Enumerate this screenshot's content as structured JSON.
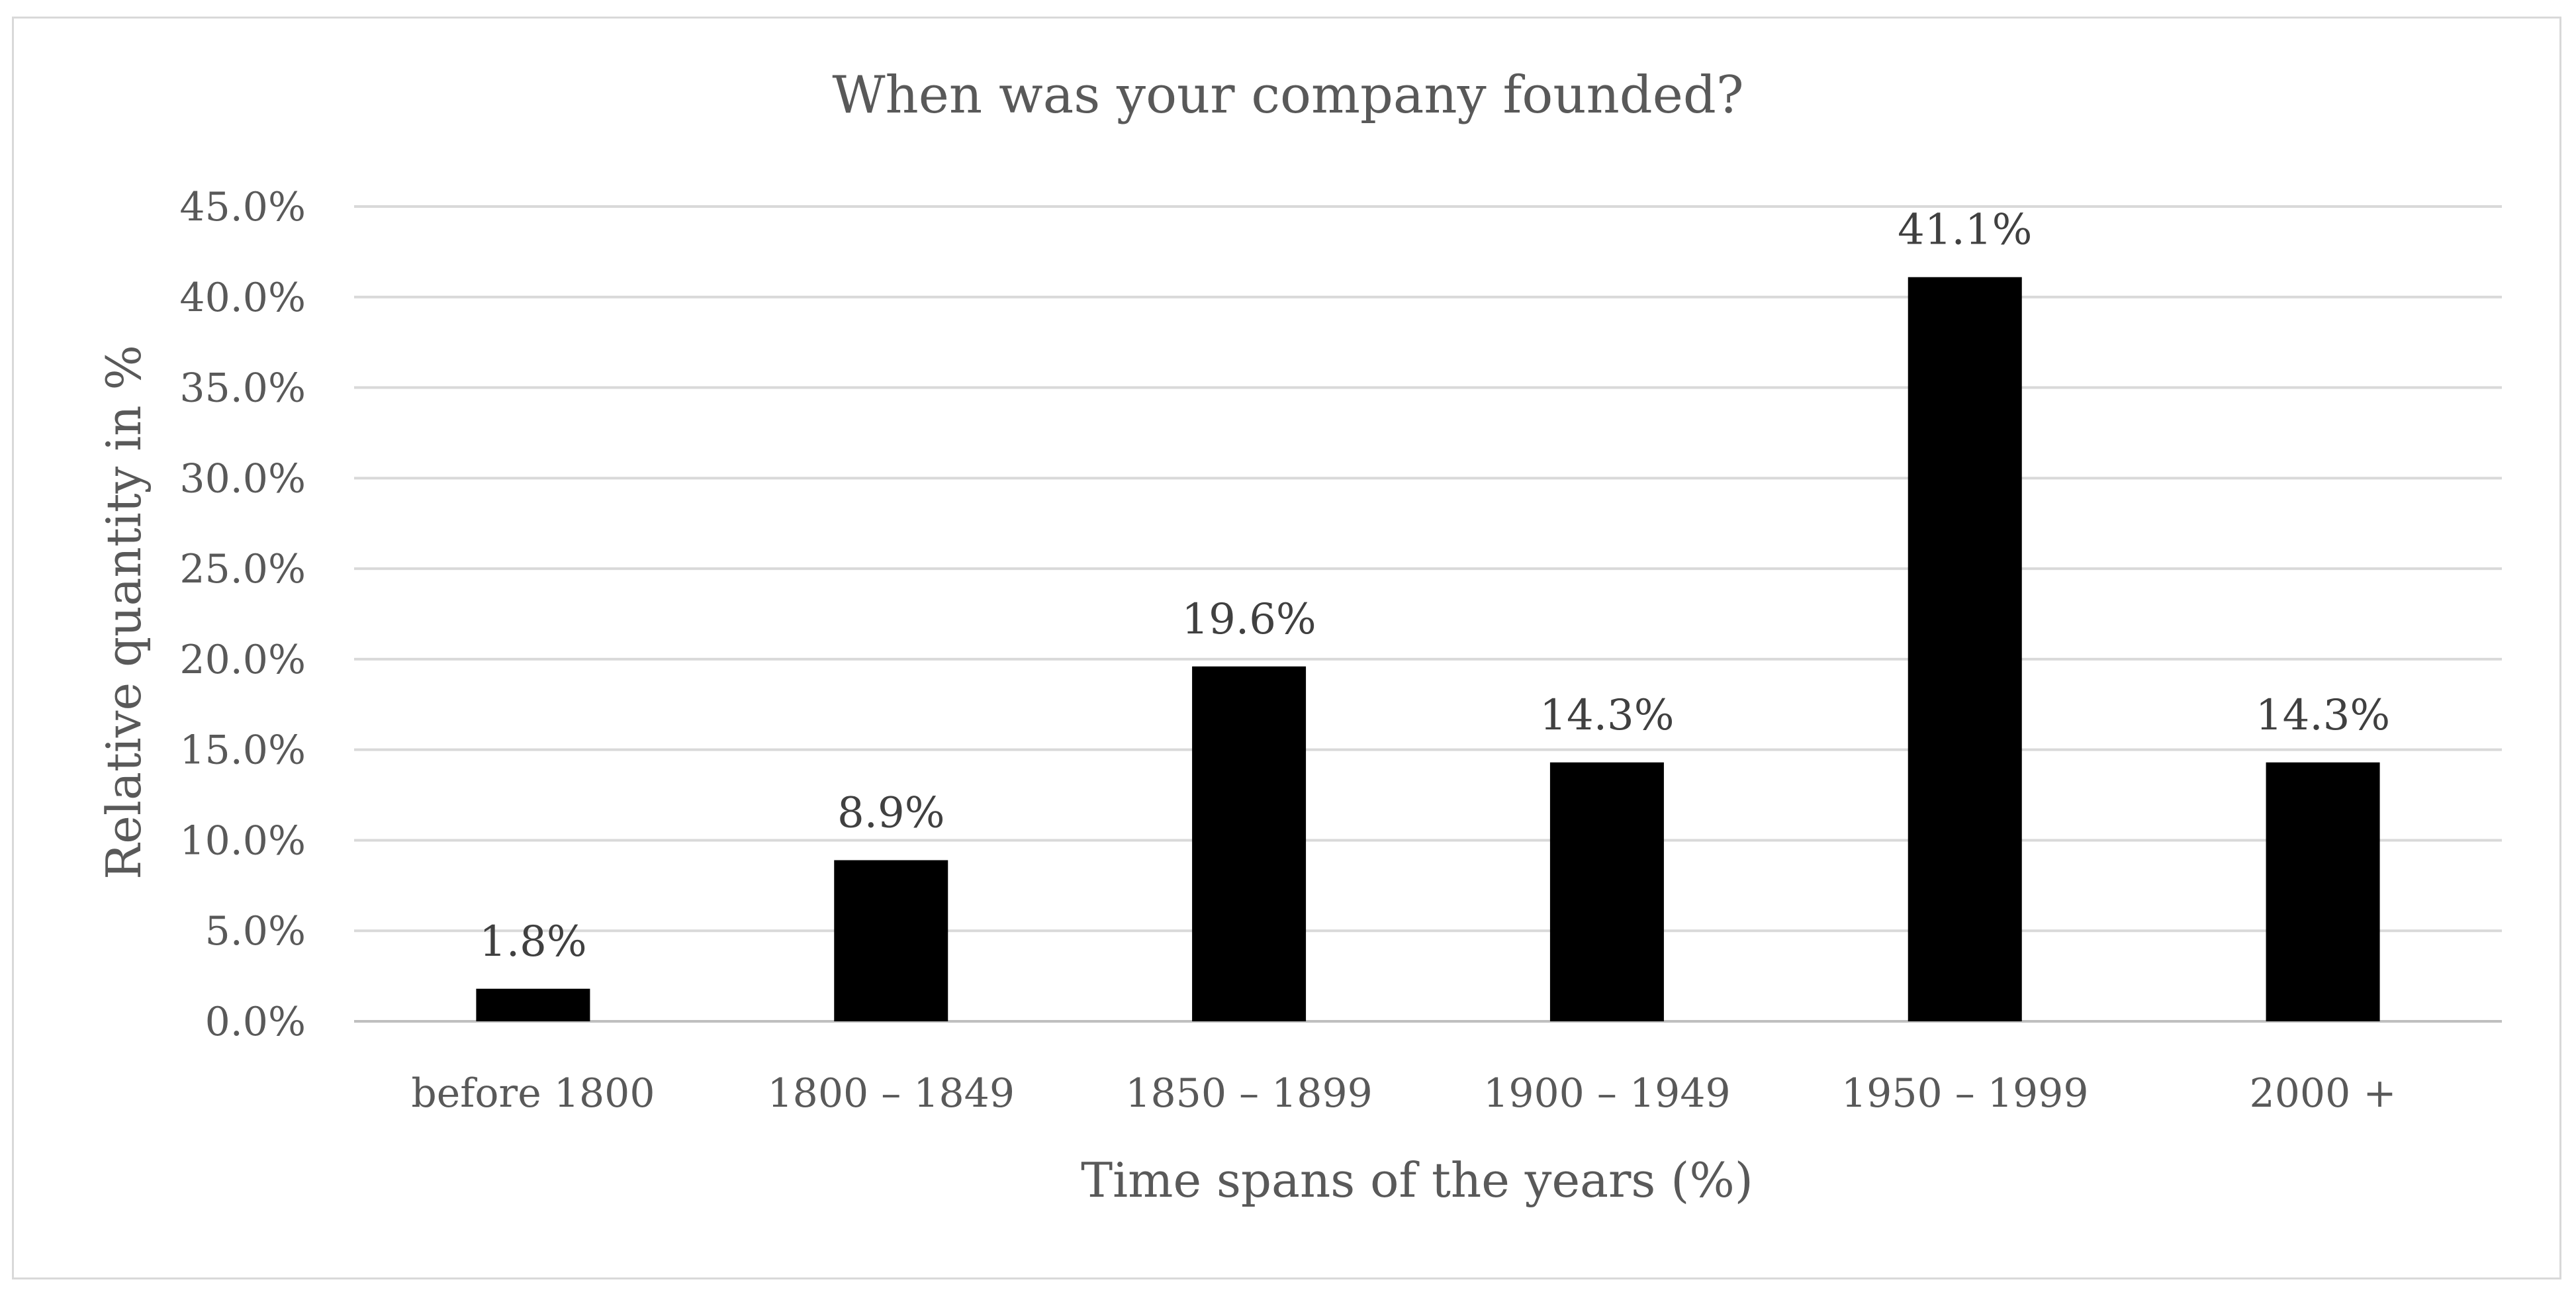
{
  "chart_data": {
    "type": "bar",
    "title": "When was your company founded?",
    "xlabel": "Time spans of the years (%)",
    "ylabel": "Relative quantity in %",
    "categories": [
      "before 1800",
      "1800 – 1849",
      "1850 – 1899",
      "1900 – 1949",
      "1950 – 1999",
      "2000 +"
    ],
    "values": [
      1.8,
      8.9,
      19.6,
      14.3,
      41.1,
      14.3
    ],
    "data_labels": [
      "1.8%",
      "8.9%",
      "19.6%",
      "14.3%",
      "41.1%",
      "14.3%"
    ],
    "ylim": [
      0,
      45
    ],
    "yticks": [
      0,
      5,
      10,
      15,
      20,
      25,
      30,
      35,
      40,
      45
    ],
    "ytick_labels": [
      "0.0%",
      "5.0%",
      "10.0%",
      "15.0%",
      "20.0%",
      "25.0%",
      "30.0%",
      "35.0%",
      "40.0%",
      "45.0%"
    ],
    "grid": true,
    "legend": "none",
    "bar_color": "#000000",
    "grid_color": "#d9d9d9",
    "text_color": "#595959"
  }
}
